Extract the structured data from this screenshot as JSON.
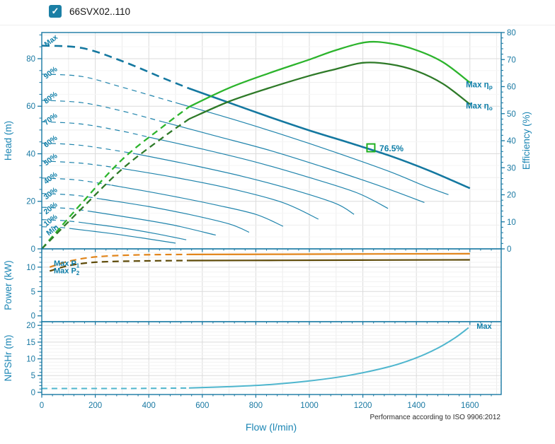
{
  "header": {
    "checkbox_checked": true,
    "check_glyph": "✓",
    "title": "66SVX02..110"
  },
  "footer": {
    "note": "Performance according to ISO 9906:2012"
  },
  "chart_data": {
    "type": "line",
    "xlabel": "Flow (l/min)",
    "x_range": [
      0,
      1717
    ],
    "x_ticks": [
      0,
      200,
      400,
      600,
      800,
      1000,
      1200,
      1400,
      1600
    ],
    "x_minor_step": 40,
    "x_grid": [
      [
        100,
        "#ececec",
        200
      ],
      [
        200,
        "#dbdbdb",
        0
      ]
    ],
    "colors": {
      "axis": "#1878A2",
      "tick": "#1878A2",
      "title": "#1C86B4",
      "label": "#0E7EA8",
      "head_curve": "#1478A0",
      "speed_curve": "#2084AC",
      "eff_p": "#2CB42C",
      "eff_o": "#2E7A28",
      "p1": "#E2851B",
      "p2": "#5E4A08",
      "npsh": "#4FB6CE",
      "marker": "#1FAF1F"
    },
    "panels": [
      {
        "id": "head",
        "ylabel": "Head (m)",
        "y_range": [
          0,
          91
        ],
        "y_ticks": [
          0,
          20,
          40,
          60,
          80
        ],
        "y_minor": 5,
        "y_grid": [
          [
            5,
            "#f5f5f5",
            10
          ],
          [
            10,
            "#ededed",
            20
          ],
          [
            20,
            "#dbdbdb",
            0
          ]
        ],
        "right": {
          "label": "Efficiency (%)",
          "range": [
            0,
            80
          ],
          "ticks": [
            0,
            10,
            20,
            30,
            40,
            50,
            60,
            70,
            80
          ],
          "minor": 2
        },
        "series": [
          {
            "name": "head-max",
            "color": "#1478A0",
            "width": 2.6,
            "dash": "11 7",
            "dash_until": 550,
            "points": [
              [
                0,
                85.5
              ],
              [
                150,
                84.5
              ],
              [
                300,
                79
              ],
              [
                450,
                72
              ],
              [
                550,
                67.5
              ],
              [
                700,
                61.5
              ],
              [
                850,
                55.5
              ],
              [
                1000,
                49.8
              ],
              [
                1150,
                44.6
              ],
              [
                1300,
                39.2
              ],
              [
                1450,
                32.8
              ],
              [
                1600,
                25.5
              ]
            ]
          },
          {
            "name": "head-90",
            "color": "#2084AC",
            "width": 1.2,
            "dash": "7 6",
            "dash_until": 500,
            "points": [
              [
                0,
                73.5
              ],
              [
                150,
                72.5
              ],
              [
                300,
                68
              ],
              [
                500,
                61.5
              ],
              [
                700,
                55
              ],
              [
                900,
                48
              ],
              [
                1100,
                40.5
              ],
              [
                1300,
                32.5
              ],
              [
                1430,
                26.5
              ],
              [
                1520,
                22.8
              ]
            ]
          },
          {
            "name": "head-80",
            "color": "#2084AC",
            "width": 1.2,
            "dash": "7 6",
            "dash_until": 450,
            "points": [
              [
                0,
                62.5
              ],
              [
                150,
                61.5
              ],
              [
                300,
                58
              ],
              [
                450,
                53.5
              ],
              [
                650,
                47.5
              ],
              [
                850,
                41.5
              ],
              [
                1050,
                34.5
              ],
              [
                1250,
                27
              ],
              [
                1430,
                19.5
              ]
            ]
          },
          {
            "name": "head-70",
            "color": "#2084AC",
            "width": 1.2,
            "dash": "7 6",
            "dash_until": 400,
            "points": [
              [
                0,
                53.5
              ],
              [
                150,
                52.5
              ],
              [
                300,
                49.5
              ],
              [
                400,
                47
              ],
              [
                600,
                42
              ],
              [
                800,
                36.5
              ],
              [
                1000,
                30
              ],
              [
                1180,
                23.5
              ],
              [
                1294,
                17
              ]
            ]
          },
          {
            "name": "head-60",
            "color": "#2084AC",
            "width": 1.2,
            "dash": "7 6",
            "dash_until": 350,
            "points": [
              [
                0,
                44.5
              ],
              [
                150,
                43.5
              ],
              [
                350,
                40
              ],
              [
                550,
                35.5
              ],
              [
                750,
                30.5
              ],
              [
                950,
                24.5
              ],
              [
                1100,
                19
              ],
              [
                1167,
                14.5
              ]
            ]
          },
          {
            "name": "head-50",
            "color": "#2084AC",
            "width": 1.2,
            "dash": "7 6",
            "dash_until": 300,
            "points": [
              [
                0,
                37
              ],
              [
                150,
                36
              ],
              [
                300,
                33.8
              ],
              [
                500,
                30
              ],
              [
                700,
                25.5
              ],
              [
                900,
                19.5
              ],
              [
                1034,
                12.5
              ]
            ]
          },
          {
            "name": "head-40",
            "color": "#2084AC",
            "width": 1.2,
            "dash": "7 6",
            "dash_until": 260,
            "points": [
              [
                0,
                29.8
              ],
              [
                130,
                29
              ],
              [
                260,
                26.8
              ],
              [
                450,
                23
              ],
              [
                650,
                18.5
              ],
              [
                800,
                14.5
              ],
              [
                902,
                9.5
              ]
            ]
          },
          {
            "name": "head-30",
            "color": "#2084AC",
            "width": 1.2,
            "dash": "7 6",
            "dash_until": 220,
            "points": [
              [
                0,
                23.3
              ],
              [
                120,
                22.6
              ],
              [
                220,
                21
              ],
              [
                400,
                17.8
              ],
              [
                550,
                14.5
              ],
              [
                700,
                10.5
              ],
              [
                775,
                7
              ]
            ]
          },
          {
            "name": "head-20",
            "color": "#2084AC",
            "width": 1.2,
            "dash": "7 6",
            "dash_until": 180,
            "points": [
              [
                0,
                17.5
              ],
              [
                100,
                17
              ],
              [
                180,
                15.8
              ],
              [
                350,
                12.8
              ],
              [
                500,
                9.8
              ],
              [
                650,
                5.8
              ]
            ]
          },
          {
            "name": "head-10",
            "color": "#2084AC",
            "width": 1.2,
            "dash": "7 6",
            "dash_until": 140,
            "points": [
              [
                0,
                12.3
              ],
              [
                80,
                11.9
              ],
              [
                140,
                11.2
              ],
              [
                300,
                8.8
              ],
              [
                430,
                6.3
              ],
              [
                540,
                3.8
              ]
            ]
          },
          {
            "name": "head-min",
            "color": "#2084AC",
            "width": 1.2,
            "dash": "7 6",
            "dash_until": 110,
            "points": [
              [
                0,
                9.3
              ],
              [
                70,
                9
              ],
              [
                110,
                8.5
              ],
              [
                250,
                6.6
              ],
              [
                380,
                4.5
              ],
              [
                500,
                2.4
              ]
            ]
          },
          {
            "name": "efficiency-max-np",
            "axis": "right",
            "color": "#2CB42C",
            "width": 2.3,
            "dash": "9 6",
            "dash_until": 550,
            "points": [
              [
                0,
                0
              ],
              [
                150,
                17
              ],
              [
                300,
                33
              ],
              [
                450,
                45
              ],
              [
                550,
                52.5
              ],
              [
                700,
                59.5
              ],
              [
                850,
                65
              ],
              [
                1000,
                70
              ],
              [
                1100,
                73.5
              ],
              [
                1210,
                76.4
              ],
              [
                1300,
                76
              ],
              [
                1400,
                73.5
              ],
              [
                1500,
                69
              ],
              [
                1600,
                61.5
              ]
            ]
          },
          {
            "name": "efficiency-max-no",
            "axis": "right",
            "color": "#2E7A28",
            "width": 2.3,
            "dash": "9 6",
            "dash_until": 550,
            "points": [
              [
                0,
                0
              ],
              [
                150,
                15
              ],
              [
                300,
                29.5
              ],
              [
                450,
                41
              ],
              [
                550,
                48
              ],
              [
                700,
                54.5
              ],
              [
                850,
                59.5
              ],
              [
                1000,
                64
              ],
              [
                1100,
                66.5
              ],
              [
                1200,
                68.8
              ],
              [
                1300,
                68.3
              ],
              [
                1400,
                65.8
              ],
              [
                1500,
                61
              ],
              [
                1600,
                53.5
              ]
            ]
          }
        ],
        "labels": [
          {
            "t": "Max",
            "q": 40,
            "v": 88,
            "rot": -38
          },
          {
            "t": "90%",
            "q": 38,
            "v": 74.5,
            "rot": -38
          },
          {
            "t": "80%",
            "q": 38,
            "v": 64,
            "rot": -38
          },
          {
            "t": "70%",
            "q": 38,
            "v": 55,
            "rot": -38
          },
          {
            "t": "60%",
            "q": 38,
            "v": 45.6,
            "rot": -38
          },
          {
            "t": "50%",
            "q": 38,
            "v": 38,
            "rot": -38
          },
          {
            "t": "40%",
            "q": 38,
            "v": 30.2,
            "rot": -38
          },
          {
            "t": "30%",
            "q": 38,
            "v": 23.7,
            "rot": -38
          },
          {
            "t": "20%",
            "q": 38,
            "v": 17.5,
            "rot": -38
          },
          {
            "t": "10%",
            "q": 38,
            "v": 12.4,
            "rot": -38
          },
          {
            "t": "Min",
            "q": 45,
            "v": 8.3,
            "rot": -38
          },
          {
            "t": "76.5%",
            "q": 1262,
            "v": 42.2,
            "anchor": "start",
            "size": 12
          },
          {
            "t": "Max  η",
            "sub": "p",
            "q": 1585,
            "v": 60.8,
            "axis": "right",
            "anchor": "start",
            "size": 11.5
          },
          {
            "t": "Max  η",
            "sub": "o",
            "q": 1585,
            "v": 53,
            "axis": "right",
            "anchor": "start",
            "size": 11.5
          }
        ],
        "marker": {
          "q": 1230,
          "v": 42.5,
          "color": "#1FAF1F",
          "value_label": "76.5%"
        }
      },
      {
        "id": "power",
        "ylabel": "Power (kW)",
        "y_range": [
          -1.2,
          13.75
        ],
        "y_ticks": [
          0,
          5,
          10
        ],
        "y_minor": 1,
        "y_grid": [
          [
            1,
            "#f2f2f2",
            5
          ],
          [
            5,
            "#dbdbdb",
            0
          ]
        ],
        "series": [
          {
            "name": "power-max-p1",
            "color": "#E2851B",
            "width": 2.2,
            "dash": "9 6",
            "dash_until": 550,
            "points": [
              [
                30,
                10
              ],
              [
                100,
                11.2
              ],
              [
                200,
                12.1
              ],
              [
                350,
                12.5
              ],
              [
                550,
                12.6
              ],
              [
                900,
                12.65
              ],
              [
                1250,
                12.7
              ],
              [
                1600,
                12.75
              ]
            ]
          },
          {
            "name": "power-max-p2",
            "color": "#5E4A08",
            "width": 2.2,
            "dash": "9 6",
            "dash_until": 550,
            "points": [
              [
                30,
                9.2
              ],
              [
                100,
                10.3
              ],
              [
                200,
                11
              ],
              [
                350,
                11.25
              ],
              [
                550,
                11.35
              ],
              [
                900,
                11.4
              ],
              [
                1250,
                11.45
              ],
              [
                1600,
                11.5
              ]
            ]
          }
        ],
        "labels": [
          {
            "t": "Max  P",
            "sub": "1",
            "q": 45,
            "v": 10.85,
            "anchor": "start",
            "size": 11
          },
          {
            "t": "Max  P",
            "sub": "2",
            "q": 45,
            "v": 9.35,
            "anchor": "start",
            "size": 11
          }
        ]
      },
      {
        "id": "npsh",
        "ylabel": "NPSHr (m)",
        "y_range": [
          -0.65,
          21.1
        ],
        "y_ticks": [
          0,
          5,
          10,
          15,
          20
        ],
        "y_minor": 1,
        "y_grid": [
          [
            1,
            "#f2f2f2",
            5
          ],
          [
            5,
            "#dbdbdb",
            0
          ]
        ],
        "series": [
          {
            "name": "npshr-max",
            "color": "#4FB6CE",
            "width": 2,
            "dash": "8 6",
            "dash_until": 550,
            "points": [
              [
                0,
                1.15
              ],
              [
                300,
                1.15
              ],
              [
                550,
                1.3
              ],
              [
                700,
                1.7
              ],
              [
                850,
                2.3
              ],
              [
                1000,
                3.4
              ],
              [
                1150,
                5.1
              ],
              [
                1300,
                7.7
              ],
              [
                1400,
                10.3
              ],
              [
                1480,
                13.2
              ],
              [
                1545,
                16.3
              ],
              [
                1595,
                19.3
              ]
            ]
          }
        ],
        "labels": [
          {
            "t": "Max",
            "q": 1625,
            "v": 19.8,
            "anchor": "start",
            "size": 11
          }
        ]
      }
    ]
  }
}
